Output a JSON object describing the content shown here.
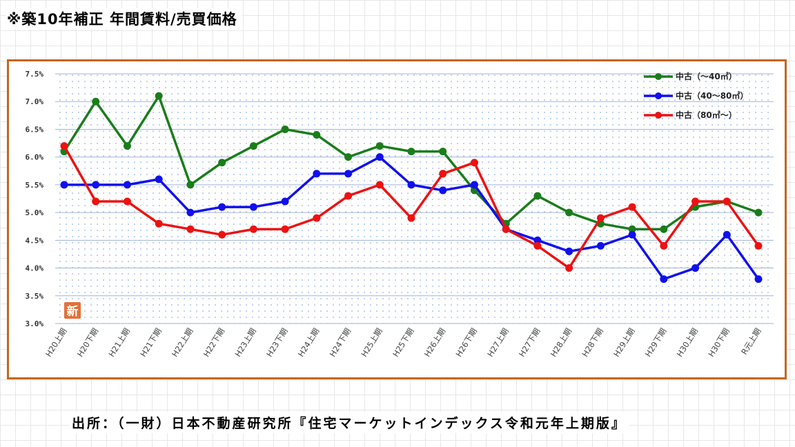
{
  "title": "※築10年補正 年間賃料/売買価格",
  "footer": "出所：（一財）日本不動産研究所『住宅マーケットインデックス令和元年上期版』",
  "badge": "新",
  "chart_data": {
    "type": "line",
    "categories": [
      "H20上期",
      "H20下期",
      "H21上期",
      "H21下期",
      "H22上期",
      "H22下期",
      "H23上期",
      "H23下期",
      "H24上期",
      "H24下期",
      "H25上期",
      "H25下期",
      "H26上期",
      "H26下期",
      "H27上期",
      "H27下期",
      "H28上期",
      "H28下期",
      "H29上期",
      "H29下期",
      "H30上期",
      "H30下期",
      "R元上期"
    ],
    "y_ticks": [
      "7.5%",
      "7.0%",
      "6.5%",
      "6.0%",
      "5.5%",
      "5.0%",
      "4.5%",
      "4.0%",
      "3.5%",
      "3.0%"
    ],
    "ylim": [
      3.0,
      7.5
    ],
    "grid": true,
    "legend_position": "top-right",
    "series": [
      {
        "name": "中古（～40㎡）",
        "color": "#1a7d1a",
        "values": [
          6.1,
          7.0,
          6.2,
          7.1,
          5.5,
          5.9,
          6.2,
          6.5,
          6.4,
          6.0,
          6.2,
          6.1,
          6.1,
          5.4,
          4.8,
          5.3,
          5.0,
          4.8,
          4.7,
          4.7,
          5.1,
          5.2,
          5.0
        ]
      },
      {
        "name": "中古（40～80㎡）",
        "color": "#1010ee",
        "values": [
          5.5,
          5.5,
          5.5,
          5.6,
          5.0,
          5.1,
          5.1,
          5.2,
          5.7,
          5.7,
          6.0,
          5.5,
          5.4,
          5.5,
          4.7,
          4.5,
          4.3,
          4.4,
          4.6,
          3.8,
          4.0,
          4.6,
          3.8
        ]
      },
      {
        "name": "中古（80㎡～）",
        "color": "#ee1111",
        "values": [
          6.2,
          5.2,
          5.2,
          4.8,
          4.7,
          4.6,
          4.7,
          4.7,
          4.9,
          5.3,
          5.5,
          4.9,
          5.7,
          5.9,
          4.7,
          4.4,
          4.0,
          4.9,
          5.1,
          4.4,
          5.2,
          5.2,
          4.4
        ]
      }
    ]
  }
}
